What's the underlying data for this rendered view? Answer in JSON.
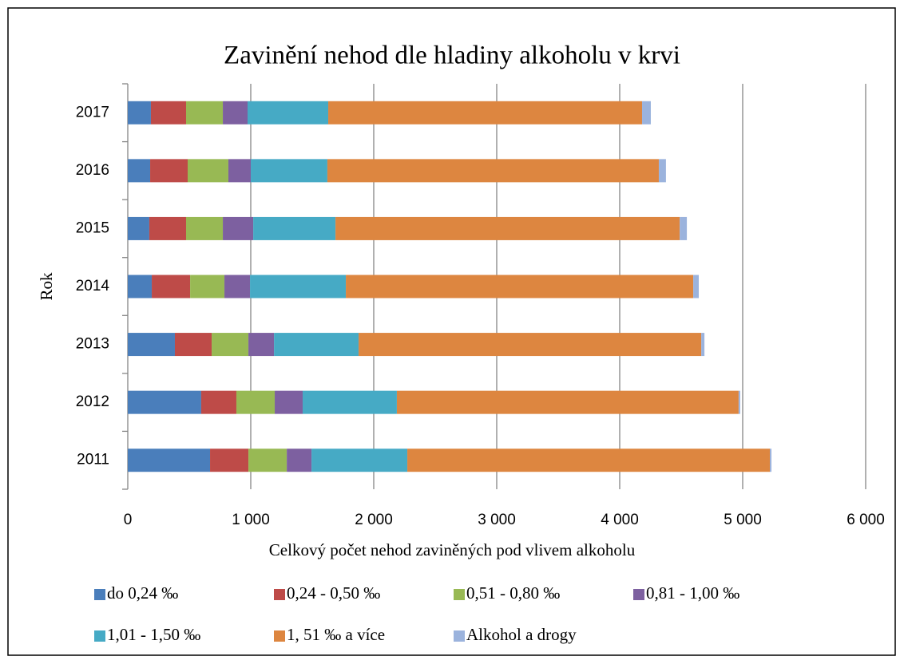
{
  "chart_data": {
    "type": "stacked_barh",
    "title": "Zavinění nehod dle hladiny alkoholu v krvi",
    "xlabel": "Celkový počet nehod zaviněných pod vlivem alkoholu",
    "ylabel": "Rok",
    "categories": [
      "2011",
      "2012",
      "2013",
      "2014",
      "2015",
      "2016",
      "2017"
    ],
    "series": [
      {
        "name": "do 0,24 ‰",
        "color": "#4a7ebb",
        "values": [
          669,
          597,
          383,
          195,
          175,
          182,
          188
        ]
      },
      {
        "name": "0,24 - 0,50 ‰",
        "color": "#be4b48",
        "values": [
          312,
          286,
          299,
          312,
          299,
          305,
          286
        ]
      },
      {
        "name": "0,51 - 0,80 ‰",
        "color": "#98b954",
        "values": [
          312,
          312,
          299,
          279,
          299,
          331,
          299
        ]
      },
      {
        "name": "0,81 - 1,00 ‰",
        "color": "#7d60a0",
        "values": [
          201,
          227,
          208,
          208,
          247,
          182,
          201
        ]
      },
      {
        "name": "1,01 - 1,50 ‰",
        "color": "#46aac5",
        "values": [
          779,
          766,
          688,
          779,
          669,
          623,
          656
        ]
      },
      {
        "name": "1, 51 ‰ a více",
        "color": "#dd8640",
        "values": [
          2948,
          2779,
          2786,
          2825,
          2799,
          2695,
          2552
        ]
      },
      {
        "name": "Alkohol a drogy",
        "color": "#9bb3dd",
        "values": [
          13,
          13,
          26,
          45,
          58,
          58,
          71
        ]
      }
    ],
    "xlim": [
      0,
      6000
    ],
    "xticks": [
      0,
      {
        "value": 1000,
        "label": "1 000"
      },
      {
        "value": 2000,
        "label": "2 000"
      },
      {
        "value": 3000,
        "label": "3 000"
      },
      {
        "value": 4000,
        "label": "4 000"
      },
      {
        "value": 5000,
        "label": "5 000"
      },
      {
        "value": 6000,
        "label": "6 000"
      }
    ],
    "grid": true,
    "legend": "bottom"
  }
}
